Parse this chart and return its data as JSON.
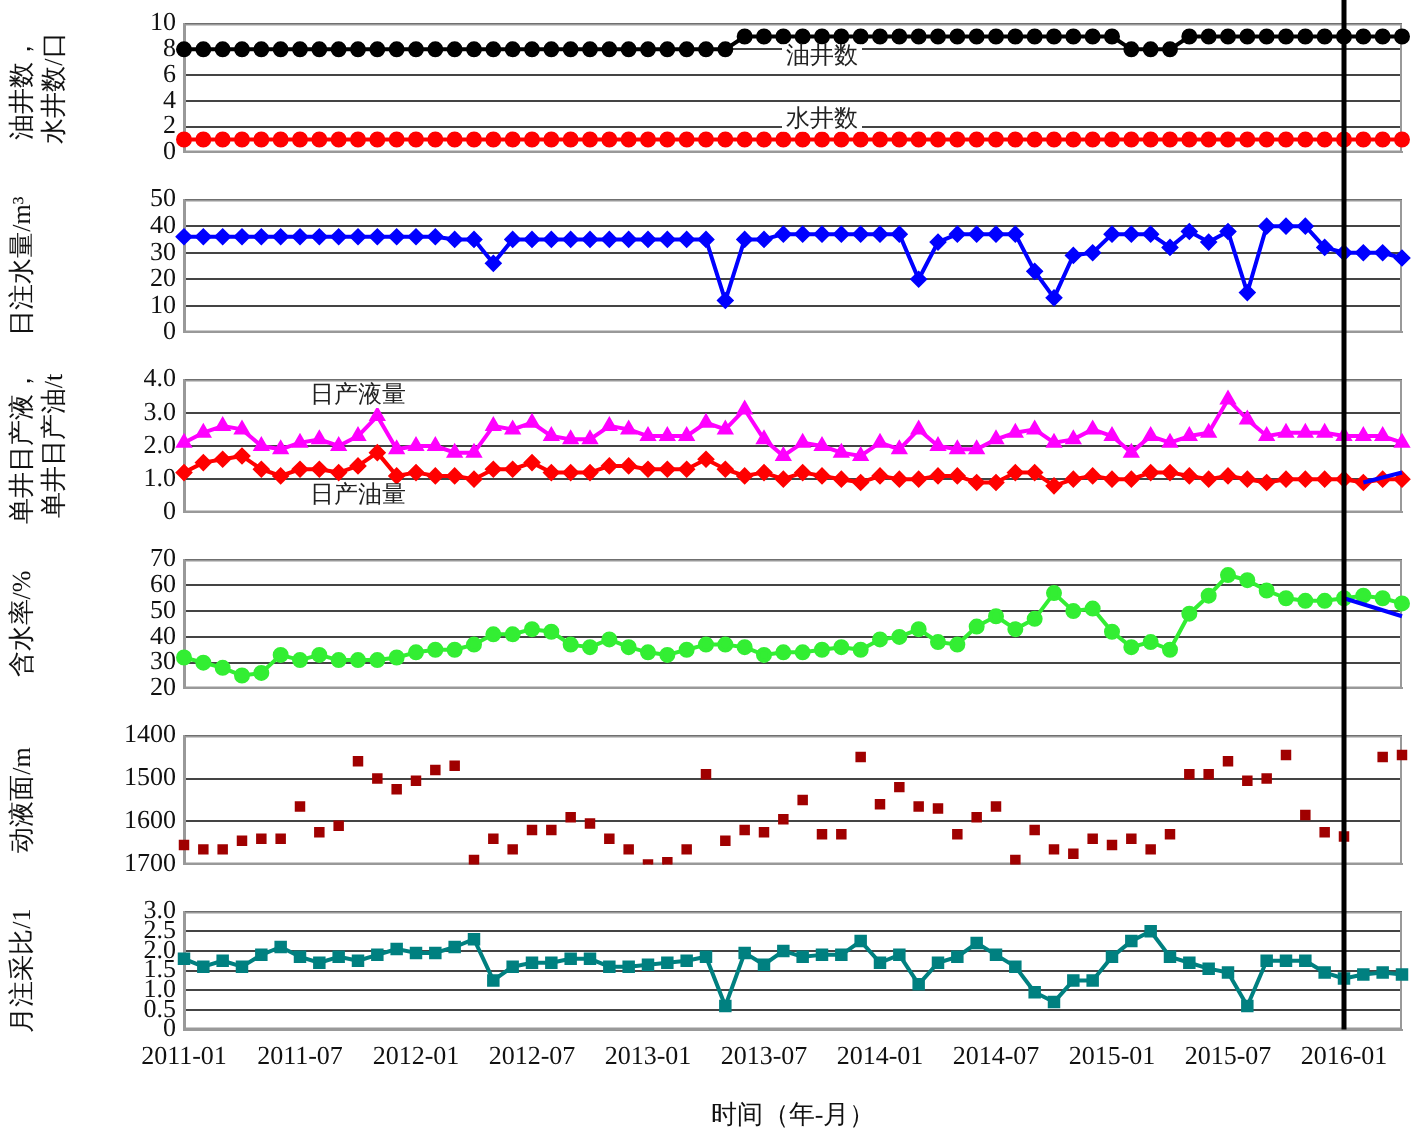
{
  "chart_data": [
    {
      "type": "line",
      "ylabel": "油井数，水井数/口",
      "categories": [
        "2011-01",
        null,
        null,
        null,
        null,
        null,
        "2011-07",
        null,
        null,
        null,
        null,
        null,
        "2012-01",
        null,
        null,
        null,
        null,
        null,
        "2012-07",
        null,
        null,
        null,
        null,
        null,
        "2013-01",
        null,
        null,
        null,
        null,
        null,
        "2013-07",
        null,
        null,
        null,
        null,
        null,
        "2014-01",
        null,
        null,
        null,
        null,
        null,
        "2014-07",
        null,
        null,
        null,
        null,
        null,
        "2015-01",
        null,
        null,
        null,
        null,
        null,
        "2015-07",
        null,
        null,
        null,
        null,
        null,
        "2016-01",
        null,
        null,
        null
      ],
      "ylim": [
        0,
        10
      ],
      "yticks": [
        0,
        2,
        4,
        6,
        8,
        10
      ],
      "grid": "y",
      "tick_labels": "y",
      "marker": "circle",
      "ref_lines": [
        {
          "axis": "x",
          "value": "2016-01",
          "color": "#000000"
        }
      ],
      "series": [
        {
          "name": "油井数",
          "color": "#000000",
          "values": [
            8,
            8,
            8,
            8,
            8,
            8,
            8,
            8,
            8,
            8,
            8,
            8,
            8,
            8,
            8,
            8,
            8,
            8,
            8,
            8,
            8,
            8,
            8,
            8,
            8,
            8,
            8,
            8,
            8,
            9,
            9,
            9,
            9,
            9,
            9,
            9,
            9,
            9,
            9,
            9,
            9,
            9,
            9,
            9,
            9,
            9,
            9,
            9,
            9,
            8,
            8,
            8,
            9,
            9,
            9,
            9,
            9,
            9,
            9,
            9,
            9,
            9,
            9,
            9
          ]
        },
        {
          "name": "水井数",
          "color": "#ff0000",
          "values": [
            1,
            1,
            1,
            1,
            1,
            1,
            1,
            1,
            1,
            1,
            1,
            1,
            1,
            1,
            1,
            1,
            1,
            1,
            1,
            1,
            1,
            1,
            1,
            1,
            1,
            1,
            1,
            1,
            1,
            1,
            1,
            1,
            1,
            1,
            1,
            1,
            1,
            1,
            1,
            1,
            1,
            1,
            1,
            1,
            1,
            1,
            1,
            1,
            1,
            1,
            1,
            1,
            1,
            1,
            1,
            1,
            1,
            1,
            1,
            1,
            1,
            1,
            1,
            1
          ]
        }
      ]
    },
    {
      "type": "line",
      "ylabel": "日注水量/m³",
      "categories": [
        "2011-01",
        null,
        null,
        null,
        null,
        null,
        "2011-07",
        null,
        null,
        null,
        null,
        null,
        "2012-01",
        null,
        null,
        null,
        null,
        null,
        "2012-07",
        null,
        null,
        null,
        null,
        null,
        "2013-01",
        null,
        null,
        null,
        null,
        null,
        "2013-07",
        null,
        null,
        null,
        null,
        null,
        "2014-01",
        null,
        null,
        null,
        null,
        null,
        "2014-07",
        null,
        null,
        null,
        null,
        null,
        "2015-01",
        null,
        null,
        null,
        null,
        null,
        "2015-07",
        null,
        null,
        null,
        null,
        null,
        "2016-01",
        null,
        null,
        null
      ],
      "ylim": [
        0,
        50
      ],
      "yticks": [
        0,
        10,
        20,
        30,
        40,
        50
      ],
      "grid": "y",
      "tick_labels": "y",
      "marker": "diamond",
      "ref_lines": [
        {
          "axis": "x",
          "value": "2016-01",
          "color": "#000000"
        }
      ],
      "series": [
        {
          "color": "#0000ff",
          "values": [
            36,
            36,
            36,
            36,
            36,
            36,
            36,
            36,
            36,
            36,
            36,
            36,
            36,
            36,
            35,
            35,
            26,
            35,
            35,
            35,
            35,
            35,
            35,
            35,
            35,
            35,
            35,
            35,
            12,
            35,
            35,
            37,
            37,
            37,
            37,
            37,
            37,
            37,
            20,
            34,
            37,
            37,
            37,
            37,
            23,
            13,
            29,
            30,
            37,
            37,
            37,
            32,
            38,
            34,
            38,
            15,
            40,
            40,
            40,
            32,
            30,
            30,
            30,
            28
          ]
        }
      ]
    },
    {
      "type": "line",
      "ylabel": "单井日产液，单井日产油/t",
      "categories": [
        "2011-01",
        null,
        null,
        null,
        null,
        null,
        "2011-07",
        null,
        null,
        null,
        null,
        null,
        "2012-01",
        null,
        null,
        null,
        null,
        null,
        "2012-07",
        null,
        null,
        null,
        null,
        null,
        "2013-01",
        null,
        null,
        null,
        null,
        null,
        "2013-07",
        null,
        null,
        null,
        null,
        null,
        "2014-01",
        null,
        null,
        null,
        null,
        null,
        "2014-07",
        null,
        null,
        null,
        null,
        null,
        "2015-01",
        null,
        null,
        null,
        null,
        null,
        "2015-07",
        null,
        null,
        null,
        null,
        null,
        "2016-01",
        null,
        null,
        null
      ],
      "ylim": [
        0,
        4
      ],
      "yticks": [
        0,
        {
          "value": 1,
          "label": "1.0"
        },
        {
          "value": 2,
          "label": "2.0"
        },
        {
          "value": 3,
          "label": "3.0"
        },
        {
          "value": 4,
          "label": "4.0"
        }
      ],
      "grid": "y",
      "tick_labels": "y",
      "ref_lines": [
        {
          "axis": "x",
          "value": "2016-01",
          "color": "#000000"
        }
      ],
      "series": [
        {
          "name": "日产液量",
          "color": "#ff00ff",
          "marker": "triangle",
          "values": [
            2.1,
            2.4,
            2.6,
            2.5,
            2.0,
            1.9,
            2.1,
            2.2,
            2.0,
            2.3,
            2.9,
            1.9,
            2.0,
            2.0,
            1.8,
            1.8,
            2.6,
            2.5,
            2.7,
            2.3,
            2.2,
            2.2,
            2.6,
            2.5,
            2.3,
            2.3,
            2.3,
            2.7,
            2.5,
            3.1,
            2.2,
            1.7,
            2.1,
            2.0,
            1.8,
            1.7,
            2.1,
            1.9,
            2.5,
            2.0,
            1.9,
            1.9,
            2.2,
            2.4,
            2.5,
            2.1,
            2.2,
            2.5,
            2.3,
            1.8,
            2.3,
            2.1,
            2.3,
            2.4,
            3.4,
            2.8,
            2.3,
            2.4,
            2.4,
            2.4,
            2.3,
            2.3,
            2.3,
            2.1
          ]
        },
        {
          "name": "日产油量",
          "color": "#ff0000",
          "marker": "diamond",
          "values": [
            1.2,
            1.5,
            1.6,
            1.7,
            1.3,
            1.1,
            1.3,
            1.3,
            1.2,
            1.4,
            1.8,
            1.1,
            1.2,
            1.1,
            1.1,
            1.0,
            1.3,
            1.3,
            1.5,
            1.2,
            1.2,
            1.2,
            1.4,
            1.4,
            1.3,
            1.3,
            1.3,
            1.6,
            1.3,
            1.1,
            1.2,
            1.0,
            1.2,
            1.1,
            1.0,
            0.9,
            1.1,
            1.0,
            1.0,
            1.1,
            1.1,
            0.9,
            0.9,
            1.2,
            1.2,
            0.8,
            1.0,
            1.1,
            1.0,
            1.0,
            1.2,
            1.2,
            1.1,
            1.0,
            1.1,
            1.0,
            0.9,
            1.0,
            1.0,
            1.0,
            1.0,
            0.9,
            1.0,
            1.0
          ]
        },
        {
          "color": "#0000ff",
          "marker": "none",
          "values": [
            null,
            null,
            null,
            null,
            null,
            null,
            null,
            null,
            null,
            null,
            null,
            null,
            null,
            null,
            null,
            null,
            null,
            null,
            null,
            null,
            null,
            null,
            null,
            null,
            null,
            null,
            null,
            null,
            null,
            null,
            null,
            null,
            null,
            null,
            null,
            null,
            null,
            null,
            null,
            null,
            null,
            null,
            null,
            null,
            null,
            null,
            null,
            null,
            null,
            null,
            null,
            null,
            null,
            null,
            null,
            null,
            null,
            null,
            null,
            null,
            null,
            0.9,
            null,
            1.2
          ]
        }
      ]
    },
    {
      "type": "line",
      "ylabel": "含水率/%",
      "categories": [
        "2011-01",
        null,
        null,
        null,
        null,
        null,
        "2011-07",
        null,
        null,
        null,
        null,
        null,
        "2012-01",
        null,
        null,
        null,
        null,
        null,
        "2012-07",
        null,
        null,
        null,
        null,
        null,
        "2013-01",
        null,
        null,
        null,
        null,
        null,
        "2013-07",
        null,
        null,
        null,
        null,
        null,
        "2014-01",
        null,
        null,
        null,
        null,
        null,
        "2014-07",
        null,
        null,
        null,
        null,
        null,
        "2015-01",
        null,
        null,
        null,
        null,
        null,
        "2015-07",
        null,
        null,
        null,
        null,
        null,
        "2016-01",
        null,
        null,
        null
      ],
      "ylim": [
        20,
        70
      ],
      "yticks": [
        20,
        30,
        40,
        50,
        60,
        70
      ],
      "grid": "y",
      "tick_labels": "y",
      "ref_lines": [
        {
          "axis": "x",
          "value": "2016-01",
          "color": "#000000"
        }
      ],
      "series": [
        {
          "color": "#33ee33",
          "marker": "circle",
          "values": [
            32,
            30,
            28,
            25,
            26,
            33,
            31,
            33,
            31,
            31,
            31,
            32,
            34,
            35,
            35,
            37,
            41,
            41,
            43,
            42,
            37,
            36,
            39,
            36,
            34,
            33,
            35,
            37,
            37,
            36,
            33,
            34,
            34,
            35,
            36,
            35,
            39,
            40,
            43,
            38,
            37,
            44,
            48,
            43,
            47,
            57,
            50,
            51,
            42,
            36,
            38,
            35,
            49,
            56,
            64,
            62,
            58,
            55,
            54,
            54,
            55,
            56,
            55,
            53
          ]
        },
        {
          "color": "#0000ff",
          "marker": "none",
          "values": [
            null,
            null,
            null,
            null,
            null,
            null,
            null,
            null,
            null,
            null,
            null,
            null,
            null,
            null,
            null,
            null,
            null,
            null,
            null,
            null,
            null,
            null,
            null,
            null,
            null,
            null,
            null,
            null,
            null,
            null,
            null,
            null,
            null,
            null,
            null,
            null,
            null,
            null,
            null,
            null,
            null,
            null,
            null,
            null,
            null,
            null,
            null,
            null,
            null,
            null,
            null,
            null,
            null,
            null,
            null,
            null,
            null,
            null,
            null,
            null,
            55,
            null,
            null,
            48
          ]
        }
      ]
    },
    {
      "type": "scatter",
      "ylabel": "动液面/m",
      "categories": [
        "2011-01",
        null,
        null,
        null,
        null,
        null,
        "2011-07",
        null,
        null,
        null,
        null,
        null,
        "2012-01",
        null,
        null,
        null,
        null,
        null,
        "2012-07",
        null,
        null,
        null,
        null,
        null,
        "2013-01",
        null,
        null,
        null,
        null,
        null,
        "2013-07",
        null,
        null,
        null,
        null,
        null,
        "2014-01",
        null,
        null,
        null,
        null,
        null,
        "2014-07",
        null,
        null,
        null,
        null,
        null,
        "2015-01",
        null,
        null,
        null,
        null,
        null,
        "2015-07",
        null,
        null,
        null,
        null,
        null,
        "2016-01",
        null,
        null,
        null
      ],
      "ylim": [
        1700,
        1400
      ],
      "yticks": [
        1400,
        1500,
        1600,
        1700
      ],
      "grid": "y",
      "tick_labels": "y",
      "marker": "square",
      "ref_lines": [
        {
          "axis": "x",
          "value": "2016-01",
          "color": "#000000"
        }
      ],
      "series": [
        {
          "color": "#a00000",
          "values": [
            1655,
            1665,
            1665,
            1645,
            1640,
            1640,
            1565,
            1625,
            1610,
            1460,
            1500,
            1525,
            1505,
            1480,
            1470,
            1690,
            1640,
            1665,
            1620,
            1620,
            1590,
            1605,
            1640,
            1665,
            1700,
            1695,
            1665,
            1490,
            1645,
            1620,
            1625,
            1595,
            1550,
            1630,
            1630,
            1450,
            1560,
            1520,
            1565,
            1570,
            1630,
            1590,
            1565,
            1690,
            1620,
            1665,
            1675,
            1640,
            1655,
            1640,
            1665,
            1630,
            1490,
            1490,
            1460,
            1505,
            1500,
            1445,
            1585,
            1625,
            1635,
            null,
            1450,
            1445
          ]
        }
      ]
    },
    {
      "type": "line",
      "ylabel": "月注采比/1",
      "xlabel": "时间（年-月）",
      "categories": [
        "2011-01",
        null,
        null,
        null,
        null,
        null,
        "2011-07",
        null,
        null,
        null,
        null,
        null,
        "2012-01",
        null,
        null,
        null,
        null,
        null,
        "2012-07",
        null,
        null,
        null,
        null,
        null,
        "2013-01",
        null,
        null,
        null,
        null,
        null,
        "2013-07",
        null,
        null,
        null,
        null,
        null,
        "2014-01",
        null,
        null,
        null,
        null,
        null,
        "2014-07",
        null,
        null,
        null,
        null,
        null,
        "2015-01",
        null,
        null,
        null,
        null,
        null,
        "2015-07",
        null,
        null,
        null,
        null,
        null,
        "2016-01",
        null,
        null,
        null
      ],
      "ylim": [
        0,
        3
      ],
      "yticks": [
        0,
        0.5,
        {
          "value": 1,
          "label": "1.0"
        },
        1.5,
        {
          "value": 2,
          "label": "2.0"
        },
        2.5,
        {
          "value": 3,
          "label": "3.0"
        }
      ],
      "grid": "y",
      "marker": "square",
      "ref_lines": [
        {
          "axis": "x",
          "value": "2016-01",
          "color": "#000000"
        }
      ],
      "series": [
        {
          "color": "#008080",
          "values": [
            1.8,
            1.6,
            1.75,
            1.6,
            1.9,
            2.1,
            1.85,
            1.7,
            1.85,
            1.75,
            1.9,
            2.05,
            1.95,
            1.95,
            2.1,
            2.3,
            1.25,
            1.6,
            1.7,
            1.7,
            1.8,
            1.8,
            1.6,
            1.6,
            1.65,
            1.7,
            1.75,
            1.85,
            0.6,
            1.95,
            1.65,
            2.0,
            1.85,
            1.9,
            1.9,
            2.25,
            1.7,
            1.9,
            1.15,
            1.7,
            1.85,
            2.2,
            1.9,
            1.6,
            0.95,
            0.7,
            1.25,
            1.25,
            1.85,
            2.25,
            2.5,
            1.85,
            1.7,
            1.55,
            1.45,
            0.6,
            1.75,
            1.75,
            1.75,
            1.45,
            1.3,
            1.4,
            1.45,
            1.4
          ]
        }
      ]
    }
  ]
}
